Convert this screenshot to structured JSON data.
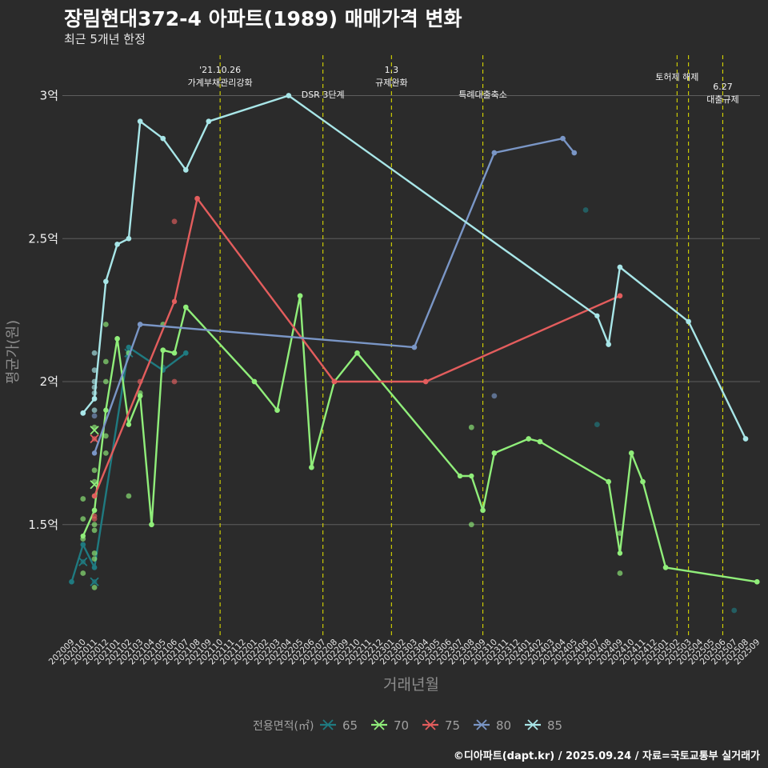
{
  "header": {
    "title": "장림현대372-4 아파트(1989) 매매가격 변화",
    "subtitle": "최근 5개년 한정"
  },
  "caption": "©디아파트(dapt.kr) / 2025.09.24 / 자료=국토교통부 실거래가",
  "chart_data": {
    "type": "line",
    "title": "장림현대372-4 아파트(1989) 매매가격 변화",
    "subtitle": "최근 5개년 한정",
    "xlabel": "거래년월",
    "ylabel": "평균가(원)",
    "ylim": [
      1.1,
      3.15
    ],
    "y_ticks": [
      {
        "value": 1.5,
        "label": "1.5억"
      },
      {
        "value": 2.0,
        "label": "2억"
      },
      {
        "value": 2.5,
        "label": "2.5억"
      },
      {
        "value": 3.0,
        "label": "3억"
      }
    ],
    "x_months": [
      "202009",
      "202010",
      "202011",
      "202012",
      "202101",
      "202102",
      "202103",
      "202104",
      "202105",
      "202106",
      "202107",
      "202108",
      "202109",
      "202110",
      "202111",
      "202112",
      "202201",
      "202202",
      "202203",
      "202204",
      "202205",
      "202206",
      "202207",
      "202208",
      "202209",
      "202210",
      "202211",
      "202212",
      "202301",
      "202302",
      "202303",
      "202304",
      "202305",
      "202306",
      "202307",
      "202308",
      "202309",
      "202310",
      "202311",
      "202312",
      "202401",
      "202402",
      "202403",
      "202404",
      "202405",
      "202406",
      "202407",
      "202408",
      "202409",
      "202410",
      "202411",
      "202412",
      "202501",
      "202502",
      "202503",
      "202504",
      "202505",
      "202506",
      "202507",
      "202508",
      "202509"
    ],
    "annotations": [
      {
        "x": 13.0,
        "lines": [
          "'21.10.26",
          "가계부채관리강화"
        ],
        "row": 0
      },
      {
        "x": 22.0,
        "lines": [
          "DSR 3단계"
        ],
        "row": 2
      },
      {
        "x": 28.0,
        "lines": [
          "1.3",
          "규제완화"
        ],
        "row": 0
      },
      {
        "x": 36.0,
        "lines": [
          "특례대출축소"
        ],
        "row": 2
      },
      {
        "x": 53.0,
        "lines": [
          "토허제 해제"
        ],
        "row": 1
      },
      {
        "x": 54.0,
        "lines": [],
        "row": 1
      },
      {
        "x": 57.0,
        "lines": [
          "6.27",
          "대출규제"
        ],
        "row": 3
      }
    ],
    "legend": {
      "title": "전용면적(㎡)",
      "position": "bottom"
    },
    "series": [
      {
        "name": "65",
        "color": "#1f7a80",
        "line": [
          [
            0,
            1.3
          ],
          [
            1,
            1.43
          ],
          [
            2,
            1.35
          ],
          [
            5,
            2.12
          ],
          [
            8,
            2.04
          ],
          [
            10,
            2.1
          ]
        ],
        "points": [
          [
            0,
            1.3
          ],
          [
            1,
            1.43
          ],
          [
            1,
            1.37
          ],
          [
            2,
            1.3
          ],
          [
            2,
            1.35
          ],
          [
            5,
            2.12
          ],
          [
            5,
            2.1
          ],
          [
            8,
            2.05
          ],
          [
            10,
            2.1
          ],
          [
            45,
            2.6
          ],
          [
            46,
            1.85
          ],
          [
            58,
            1.2
          ]
        ],
        "crosses": [
          [
            1,
            1.37
          ],
          [
            2,
            1.3
          ],
          [
            5,
            2.1
          ]
        ]
      },
      {
        "name": "70",
        "color": "#90ee7a",
        "line": [
          [
            1,
            1.46
          ],
          [
            2,
            1.55
          ],
          [
            3,
            1.9
          ],
          [
            4,
            2.15
          ],
          [
            5,
            1.85
          ],
          [
            6,
            1.95
          ],
          [
            7,
            1.5
          ],
          [
            8,
            2.11
          ],
          [
            9,
            2.1
          ],
          [
            10,
            2.26
          ],
          [
            16,
            2.0
          ],
          [
            18,
            1.9
          ],
          [
            20,
            2.3
          ],
          [
            21,
            1.7
          ],
          [
            23,
            2.0
          ],
          [
            25,
            2.1
          ],
          [
            34,
            1.67
          ],
          [
            35,
            1.67
          ],
          [
            36,
            1.55
          ],
          [
            37,
            1.75
          ],
          [
            40,
            1.8
          ],
          [
            41,
            1.79
          ],
          [
            47,
            1.65
          ],
          [
            48,
            1.4
          ],
          [
            49,
            1.75
          ],
          [
            50,
            1.65
          ],
          [
            52,
            1.35
          ],
          [
            60,
            1.3
          ]
        ],
        "points": [
          [
            1,
            1.59
          ],
          [
            1,
            1.52
          ],
          [
            1,
            1.45
          ],
          [
            1,
            1.33
          ],
          [
            2,
            1.84
          ],
          [
            2,
            1.69
          ],
          [
            2,
            1.65
          ],
          [
            2,
            1.6
          ],
          [
            2,
            1.55
          ],
          [
            2,
            1.5
          ],
          [
            2,
            1.48
          ],
          [
            2,
            1.4
          ],
          [
            2,
            1.38
          ],
          [
            2,
            1.28
          ],
          [
            3,
            2.2
          ],
          [
            3,
            2.07
          ],
          [
            3,
            2.0
          ],
          [
            3,
            1.81
          ],
          [
            3,
            1.75
          ],
          [
            4,
            2.15
          ],
          [
            5,
            1.6
          ],
          [
            5,
            2.1
          ],
          [
            6,
            1.96
          ],
          [
            6,
            1.95
          ],
          [
            7,
            1.5
          ],
          [
            8,
            2.2
          ],
          [
            8,
            2.11
          ],
          [
            9,
            2.1
          ],
          [
            10,
            2.26
          ],
          [
            16,
            2.0
          ],
          [
            18,
            1.9
          ],
          [
            20,
            2.3
          ],
          [
            21,
            1.7
          ],
          [
            23,
            2.0
          ],
          [
            25,
            2.1
          ],
          [
            35,
            1.84
          ],
          [
            35,
            1.5
          ],
          [
            36,
            1.55
          ],
          [
            37,
            1.75
          ],
          [
            40,
            1.8
          ],
          [
            41,
            1.79
          ],
          [
            47,
            1.65
          ],
          [
            48,
            1.47
          ],
          [
            48,
            1.33
          ],
          [
            49,
            1.75
          ],
          [
            50,
            1.65
          ],
          [
            52,
            1.35
          ],
          [
            60,
            1.3
          ]
        ],
        "crosses": [
          [
            2,
            1.83
          ],
          [
            2,
            1.64
          ]
        ]
      },
      {
        "name": "75",
        "color": "#e35d5d",
        "line": [
          [
            2,
            1.6
          ],
          [
            9,
            2.28
          ],
          [
            11,
            2.64
          ],
          [
            23,
            2.0
          ],
          [
            31,
            2.0
          ],
          [
            48,
            2.3
          ]
        ],
        "points": [
          [
            2,
            1.8
          ],
          [
            2,
            1.53
          ],
          [
            2,
            1.52
          ],
          [
            6,
            2.0
          ],
          [
            9,
            2.56
          ],
          [
            9,
            2.0
          ],
          [
            11,
            2.64
          ],
          [
            23,
            2.0
          ],
          [
            31,
            2.0
          ],
          [
            48,
            2.3
          ]
        ],
        "crosses": [
          [
            2,
            1.8
          ]
        ]
      },
      {
        "name": "80",
        "color": "#7a96c6",
        "line": [
          [
            2,
            1.75
          ],
          [
            6,
            2.2
          ],
          [
            30,
            2.12
          ],
          [
            37,
            2.8
          ],
          [
            43,
            2.85
          ],
          [
            44,
            2.8
          ]
        ],
        "points": [
          [
            1,
            1.89
          ],
          [
            2,
            1.88
          ],
          [
            6,
            2.2
          ],
          [
            30,
            2.12
          ],
          [
            37,
            1.95
          ],
          [
            37,
            2.8
          ],
          [
            43,
            2.85
          ],
          [
            44,
            2.8
          ]
        ],
        "crosses": []
      },
      {
        "name": "85",
        "color": "#a8e6e8",
        "line": [
          [
            1,
            1.89
          ],
          [
            2,
            1.94
          ],
          [
            3,
            2.35
          ],
          [
            4,
            2.48
          ],
          [
            5,
            2.5
          ],
          [
            6,
            2.91
          ],
          [
            8,
            2.85
          ],
          [
            10,
            2.74
          ],
          [
            12,
            2.91
          ],
          [
            19,
            3.0
          ],
          [
            46,
            2.23
          ],
          [
            47,
            2.13
          ],
          [
            48,
            2.4
          ],
          [
            54,
            2.21
          ],
          [
            59,
            1.8
          ]
        ],
        "points": [
          [
            1,
            1.89
          ],
          [
            2,
            2.1
          ],
          [
            2,
            2.04
          ],
          [
            2,
            2.0
          ],
          [
            2,
            1.98
          ],
          [
            2,
            1.96
          ],
          [
            2,
            1.94
          ],
          [
            2,
            1.9
          ],
          [
            3,
            2.35
          ],
          [
            4,
            2.48
          ],
          [
            5,
            2.5
          ],
          [
            6,
            2.91
          ],
          [
            8,
            2.85
          ],
          [
            10,
            2.74
          ],
          [
            12,
            2.91
          ],
          [
            19,
            3.0
          ],
          [
            47,
            2.13
          ],
          [
            48,
            2.4
          ],
          [
            54,
            2.21
          ],
          [
            59,
            1.8
          ]
        ],
        "crosses": []
      }
    ]
  }
}
